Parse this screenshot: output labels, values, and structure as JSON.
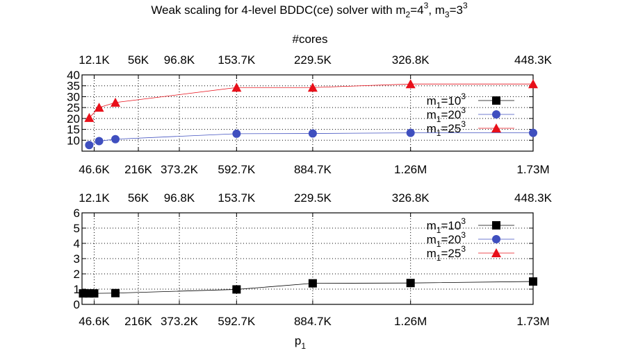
{
  "title": {
    "pre": "Weak scaling for 4-level BDDC(ce) solver with m",
    "sub2": "2",
    "eq2": "=4",
    "sup2": "3",
    "comma": ", m",
    "sub3": "3",
    "eq3": "=3",
    "sup3": "3"
  },
  "colors": {
    "m1_10": "#000000",
    "m1_20": "#3f4fbf",
    "m1_25": "#e8101a",
    "grid": "#000000"
  },
  "chart_data": [
    {
      "type": "line",
      "top_axis_label": "#cores",
      "top_ticks": [
        {
          "pos": 46.6,
          "label": "12.1K"
        },
        {
          "pos": 216,
          "label": "56K"
        },
        {
          "pos": 373.2,
          "label": "96.8K"
        },
        {
          "pos": 592.7,
          "label": "153.7K"
        },
        {
          "pos": 884.7,
          "label": "229.5K"
        },
        {
          "pos": 1260,
          "label": "326.8K"
        },
        {
          "pos": 1730,
          "label": "448.3K"
        }
      ],
      "bottom_ticks": [
        {
          "pos": 46.6,
          "label": "46.6K"
        },
        {
          "pos": 216,
          "label": "216K"
        },
        {
          "pos": 373.2,
          "label": "373.2K"
        },
        {
          "pos": 592.7,
          "label": "592.7K"
        },
        {
          "pos": 884.7,
          "label": "884.7K"
        },
        {
          "pos": 1260,
          "label": "1.26M"
        },
        {
          "pos": 1730,
          "label": "1.73M"
        }
      ],
      "xlim": [
        0,
        1730
      ],
      "ylim": [
        5,
        40
      ],
      "yticks": [
        "10",
        "15",
        "20",
        "25",
        "30",
        "35",
        "40"
      ],
      "ytick_values": [
        10,
        15,
        20,
        25,
        30,
        35,
        40
      ],
      "legend_position": "right",
      "series": [
        {
          "id": "m1_10",
          "base": "m",
          "sub": "1",
          "mid": "=10",
          "sup": "3",
          "marker": "square",
          "x": [],
          "y": []
        },
        {
          "id": "m1_20",
          "base": "m",
          "sub": "1",
          "mid": "=20",
          "sup": "3",
          "marker": "circle",
          "x": [
            27.6,
            65.5,
            128,
            592.7,
            884.7,
            1260,
            1730
          ],
          "y": [
            7.8,
            9.6,
            10.5,
            13.0,
            13.1,
            13.4,
            13.4
          ]
        },
        {
          "id": "m1_25",
          "base": "m",
          "sub": "1",
          "mid": "=25",
          "sup": "3",
          "marker": "triangle",
          "x": [
            27.6,
            65.5,
            128,
            592.7,
            884.7,
            1260,
            1730
          ],
          "y": [
            20.3,
            25.0,
            27.3,
            34.2,
            34.2,
            35.8,
            35.8
          ]
        }
      ]
    },
    {
      "type": "line",
      "xlabel": {
        "base": "p",
        "sub": "1"
      },
      "top_ticks": [
        {
          "pos": 46.6,
          "label": "12.1K"
        },
        {
          "pos": 216,
          "label": "56K"
        },
        {
          "pos": 373.2,
          "label": "96.8K"
        },
        {
          "pos": 592.7,
          "label": "153.7K"
        },
        {
          "pos": 884.7,
          "label": "229.5K"
        },
        {
          "pos": 1260,
          "label": "326.8K"
        },
        {
          "pos": 1730,
          "label": "448.3K"
        }
      ],
      "bottom_ticks": [
        {
          "pos": 46.6,
          "label": "46.6K"
        },
        {
          "pos": 216,
          "label": "216K"
        },
        {
          "pos": 373.2,
          "label": "373.2K"
        },
        {
          "pos": 592.7,
          "label": "592.7K"
        },
        {
          "pos": 884.7,
          "label": "884.7K"
        },
        {
          "pos": 1260,
          "label": "1.26M"
        },
        {
          "pos": 1730,
          "label": "1.73M"
        }
      ],
      "xlim": [
        0,
        1730
      ],
      "ylim": [
        0,
        6
      ],
      "yticks": [
        "0",
        "1",
        "2",
        "3",
        "4",
        "5",
        "6"
      ],
      "ytick_values": [
        0,
        1,
        2,
        3,
        4,
        5,
        6
      ],
      "legend_position": "top-right",
      "series": [
        {
          "id": "m1_10",
          "base": "m",
          "sub": "1",
          "mid": "=10",
          "sup": "3",
          "marker": "square",
          "x": [
            4,
            27.6,
            46.6,
            128,
            592.7,
            884.7,
            1260,
            1730
          ],
          "y": [
            0.72,
            0.72,
            0.72,
            0.74,
            0.98,
            1.38,
            1.4,
            1.5
          ]
        },
        {
          "id": "m1_20",
          "base": "m",
          "sub": "1",
          "mid": "=20",
          "sup": "3",
          "marker": "circle",
          "x": [],
          "y": []
        },
        {
          "id": "m1_25",
          "base": "m",
          "sub": "1",
          "mid": "=25",
          "sup": "3",
          "marker": "triangle",
          "x": [],
          "y": []
        }
      ]
    }
  ]
}
